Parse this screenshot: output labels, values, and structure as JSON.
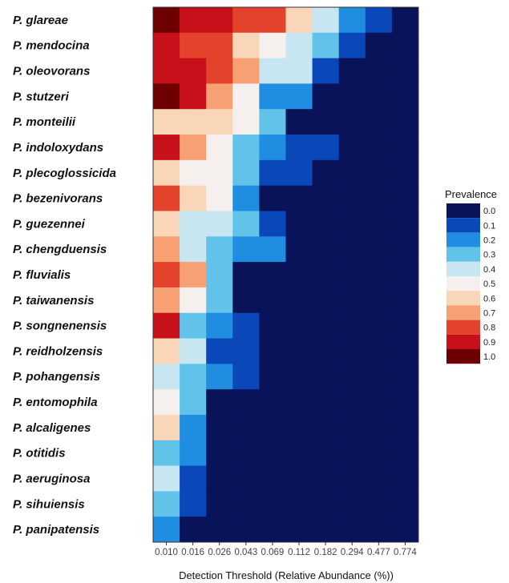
{
  "chart_data": {
    "type": "heatmap",
    "title": "",
    "xlabel": "Detection Threshold (Relative Abundance (%))",
    "ylabel": "",
    "x_ticks": [
      "0.010",
      "0.016",
      "0.026",
      "0.043",
      "0.069",
      "0.112",
      "0.182",
      "0.294",
      "0.477",
      "0.774"
    ],
    "y_categories": [
      "P. glareae",
      "P. mendocina",
      "P. oleovorans",
      "P. stutzeri",
      "P. monteilii",
      "P. indoloxydans",
      "P. plecoglossicida",
      "P. bezenivorans",
      "P. guezennei",
      "P. chengduensis",
      "P. fluvialis",
      "P. taiwanensis",
      "P. songnenensis",
      "P. reidholzensis",
      "P. pohangensis",
      "P. entomophila",
      "P. alcaligenes",
      "P. otitidis",
      "P. aeruginosa",
      "P. sihuiensis",
      "P. panipatensis"
    ],
    "values": [
      [
        1.0,
        0.9,
        0.9,
        0.8,
        0.8,
        0.6,
        0.4,
        0.2,
        0.1,
        0.0
      ],
      [
        0.9,
        0.8,
        0.8,
        0.6,
        0.5,
        0.4,
        0.3,
        0.1,
        0.0,
        0.0
      ],
      [
        0.9,
        0.9,
        0.8,
        0.7,
        0.4,
        0.4,
        0.1,
        0.0,
        0.0,
        0.0
      ],
      [
        1.0,
        0.9,
        0.7,
        0.5,
        0.2,
        0.2,
        0.0,
        0.0,
        0.0,
        0.0
      ],
      [
        0.6,
        0.6,
        0.6,
        0.5,
        0.3,
        0.0,
        0.0,
        0.0,
        0.0,
        0.0
      ],
      [
        0.9,
        0.7,
        0.5,
        0.3,
        0.2,
        0.1,
        0.1,
        0.0,
        0.0,
        0.0
      ],
      [
        0.6,
        0.5,
        0.5,
        0.3,
        0.1,
        0.1,
        0.0,
        0.0,
        0.0,
        0.0
      ],
      [
        0.8,
        0.6,
        0.5,
        0.2,
        0.0,
        0.0,
        0.0,
        0.0,
        0.0,
        0.0
      ],
      [
        0.6,
        0.4,
        0.4,
        0.3,
        0.1,
        0.0,
        0.0,
        0.0,
        0.0,
        0.0
      ],
      [
        0.7,
        0.4,
        0.3,
        0.2,
        0.2,
        0.0,
        0.0,
        0.0,
        0.0,
        0.0
      ],
      [
        0.8,
        0.7,
        0.3,
        0.0,
        0.0,
        0.0,
        0.0,
        0.0,
        0.0,
        0.0
      ],
      [
        0.7,
        0.5,
        0.3,
        0.0,
        0.0,
        0.0,
        0.0,
        0.0,
        0.0,
        0.0
      ],
      [
        0.9,
        0.3,
        0.2,
        0.1,
        0.0,
        0.0,
        0.0,
        0.0,
        0.0,
        0.0
      ],
      [
        0.6,
        0.4,
        0.1,
        0.1,
        0.0,
        0.0,
        0.0,
        0.0,
        0.0,
        0.0
      ],
      [
        0.4,
        0.3,
        0.2,
        0.1,
        0.0,
        0.0,
        0.0,
        0.0,
        0.0,
        0.0
      ],
      [
        0.5,
        0.3,
        0.0,
        0.0,
        0.0,
        0.0,
        0.0,
        0.0,
        0.0,
        0.0
      ],
      [
        0.6,
        0.2,
        0.0,
        0.0,
        0.0,
        0.0,
        0.0,
        0.0,
        0.0,
        0.0
      ],
      [
        0.3,
        0.2,
        0.0,
        0.0,
        0.0,
        0.0,
        0.0,
        0.0,
        0.0,
        0.0
      ],
      [
        0.4,
        0.1,
        0.0,
        0.0,
        0.0,
        0.0,
        0.0,
        0.0,
        0.0,
        0.0
      ],
      [
        0.3,
        0.1,
        0.0,
        0.0,
        0.0,
        0.0,
        0.0,
        0.0,
        0.0,
        0.0
      ],
      [
        0.2,
        0.0,
        0.0,
        0.0,
        0.0,
        0.0,
        0.0,
        0.0,
        0.0,
        0.0
      ]
    ],
    "legend": {
      "title": "Prevalence",
      "position": "right",
      "levels": [
        "0.0",
        "0.1",
        "0.2",
        "0.3",
        "0.4",
        "0.5",
        "0.6",
        "0.7",
        "0.8",
        "0.9",
        "1.0"
      ],
      "colors": [
        "#08135a",
        "#0a47b8",
        "#1f8ee0",
        "#62c3ea",
        "#c8e6f2",
        "#f5f0ee",
        "#fad6b8",
        "#f6a073",
        "#e3432b",
        "#c8101b",
        "#6d0000"
      ]
    },
    "grid": false
  }
}
